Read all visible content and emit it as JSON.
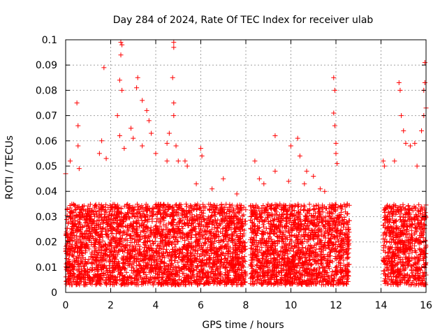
{
  "chart_data": {
    "type": "scatter",
    "title": "Day 284 of 2024, Rate Of TEC Index for receiver ulab",
    "xlabel": "GPS time / hours",
    "ylabel": "ROTI / TECUs",
    "xlim": [
      0,
      16
    ],
    "ylim": [
      0,
      0.1
    ],
    "x_ticks": [
      0,
      2,
      4,
      6,
      8,
      10,
      12,
      14,
      16
    ],
    "x_tick_labels": [
      "0",
      "2",
      "4",
      "6",
      "8",
      "10",
      "12",
      "14",
      "16"
    ],
    "y_ticks": [
      0,
      0.01,
      0.02,
      0.03,
      0.04,
      0.05,
      0.06,
      0.07,
      0.08,
      0.09,
      0.1
    ],
    "y_tick_labels": [
      "0",
      "0.01",
      "0.02",
      "0.03",
      "0.04",
      "0.05",
      "0.06",
      "0.07",
      "0.08",
      "0.09",
      "0.1"
    ],
    "grid": true,
    "marker": "+",
    "marker_color": "#ff0000",
    "data_gap_hours": [
      12.6,
      14.0
    ],
    "series": [
      {
        "name": "ROTI",
        "points": [
          [
            0.5,
            0.075
          ],
          [
            0.55,
            0.066
          ],
          [
            0.55,
            0.058
          ],
          [
            1.7,
            0.089
          ],
          [
            1.6,
            0.06
          ],
          [
            2.45,
            0.099
          ],
          [
            2.5,
            0.098
          ],
          [
            2.45,
            0.094
          ],
          [
            2.4,
            0.084
          ],
          [
            2.5,
            0.08
          ],
          [
            3.2,
            0.085
          ],
          [
            3.15,
            0.081
          ],
          [
            3.4,
            0.076
          ],
          [
            3.6,
            0.072
          ],
          [
            4.8,
            0.099
          ],
          [
            4.8,
            0.097
          ],
          [
            4.75,
            0.085
          ],
          [
            4.8,
            0.075
          ],
          [
            4.8,
            0.07
          ],
          [
            4.9,
            0.058
          ],
          [
            2.3,
            0.07
          ],
          [
            2.4,
            0.062
          ],
          [
            2.9,
            0.065
          ],
          [
            3.0,
            0.061
          ],
          [
            3.7,
            0.068
          ],
          [
            3.8,
            0.063
          ],
          [
            4.6,
            0.063
          ],
          [
            4.5,
            0.059
          ],
          [
            6.0,
            0.057
          ],
          [
            6.05,
            0.054
          ],
          [
            5.3,
            0.052
          ],
          [
            5.4,
            0.05
          ],
          [
            0.2,
            0.052
          ],
          [
            0.0,
            0.047
          ],
          [
            0.6,
            0.049
          ],
          [
            1.5,
            0.055
          ],
          [
            1.8,
            0.053
          ],
          [
            2.6,
            0.057
          ],
          [
            3.4,
            0.058
          ],
          [
            4.0,
            0.055
          ],
          [
            4.5,
            0.052
          ],
          [
            5.0,
            0.052
          ],
          [
            7.0,
            0.045
          ],
          [
            8.4,
            0.052
          ],
          [
            9.3,
            0.062
          ],
          [
            9.3,
            0.048
          ],
          [
            10.3,
            0.061
          ],
          [
            10.0,
            0.058
          ],
          [
            10.4,
            0.054
          ],
          [
            10.7,
            0.048
          ],
          [
            11.0,
            0.046
          ],
          [
            11.9,
            0.085
          ],
          [
            11.95,
            0.08
          ],
          [
            11.9,
            0.071
          ],
          [
            11.95,
            0.066
          ],
          [
            12.0,
            0.059
          ],
          [
            12.0,
            0.055
          ],
          [
            12.05,
            0.051
          ],
          [
            14.1,
            0.052
          ],
          [
            14.15,
            0.05
          ],
          [
            14.8,
            0.083
          ],
          [
            14.85,
            0.08
          ],
          [
            14.9,
            0.07
          ],
          [
            15.0,
            0.064
          ],
          [
            15.1,
            0.059
          ],
          [
            15.3,
            0.058
          ],
          [
            15.5,
            0.059
          ],
          [
            15.95,
            0.091
          ],
          [
            15.95,
            0.083
          ],
          [
            15.9,
            0.08
          ],
          [
            16.0,
            0.073
          ],
          [
            15.9,
            0.07
          ],
          [
            15.8,
            0.064
          ],
          [
            14.6,
            0.052
          ],
          [
            15.6,
            0.05
          ],
          [
            9.9,
            0.044
          ],
          [
            10.6,
            0.043
          ],
          [
            11.3,
            0.041
          ],
          [
            11.5,
            0.04
          ],
          [
            12.5,
            0.035
          ],
          [
            8.6,
            0.045
          ],
          [
            8.8,
            0.043
          ],
          [
            7.6,
            0.039
          ],
          [
            6.5,
            0.041
          ],
          [
            5.8,
            0.043
          ]
        ]
      }
    ],
    "dense_band": {
      "description": "continuous dense cluster of measurements",
      "x_segments": [
        [
          0,
          8.0
        ],
        [
          8.2,
          12.6
        ],
        [
          14.1,
          16.0
        ]
      ],
      "y_min": 0.003,
      "y_typical_max": 0.035
    }
  }
}
